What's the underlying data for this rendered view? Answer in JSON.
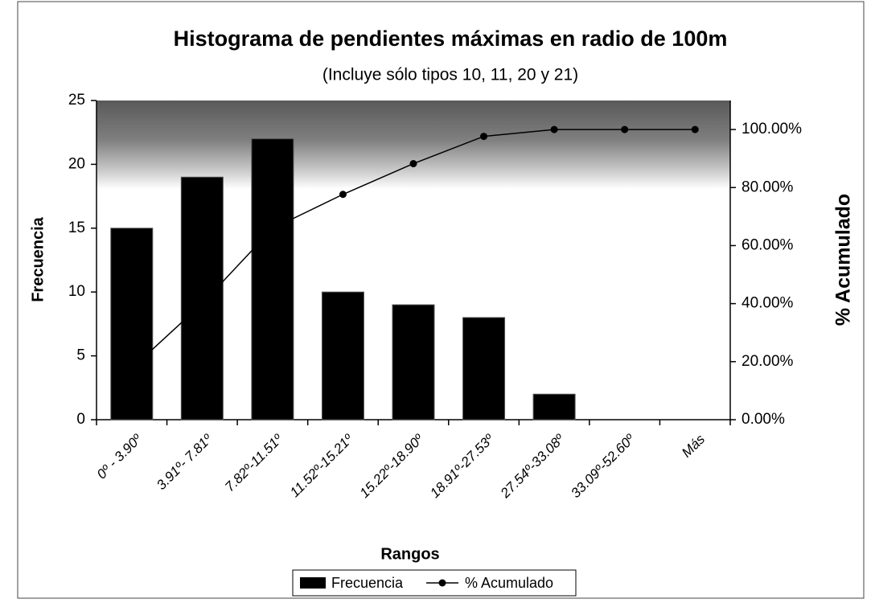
{
  "chart_data": {
    "type": "bar",
    "title": "Histograma de pendientes máximas en radio de 100m",
    "subtitle": "(Incluye sólo tipos 10, 11, 20 y 21)",
    "x_label": "Rangos",
    "y_label": "Frecuencia",
    "y2_label": "% Acumulado",
    "categories": [
      "0º - 3.90º",
      "3.91º- 7.81º",
      "7.82º-11.51º",
      "11.52º-15.21º",
      "15.22º-18.90º",
      "18.91º-27.53º",
      "27.54º-33.08º",
      "33.09º-52.60º",
      "Más"
    ],
    "series": [
      {
        "name": "Frecuencia",
        "type": "bar",
        "color": "#000000",
        "values": [
          15,
          19,
          22,
          10,
          9,
          8,
          2,
          0,
          0
        ]
      },
      {
        "name": "% Acumulado",
        "type": "line",
        "axis": "y2",
        "color": "#000000",
        "values": [
          17.65,
          40.0,
          65.88,
          77.65,
          88.24,
          97.65,
          100,
          100,
          100
        ]
      }
    ],
    "ylim": [
      0,
      25
    ],
    "yticks": [
      0,
      5,
      10,
      15,
      20,
      25
    ],
    "y2lim": [
      0,
      110
    ],
    "y2ticks": [
      {
        "value": 0,
        "label": "0.00%"
      },
      {
        "value": 20,
        "label": "20.00%"
      },
      {
        "value": 40,
        "label": "40.00%"
      },
      {
        "value": 60,
        "label": "60.00%"
      },
      {
        "value": 80,
        "label": "80.00%"
      },
      {
        "value": 100,
        "label": "100.00%"
      }
    ],
    "legend": "bottom"
  }
}
